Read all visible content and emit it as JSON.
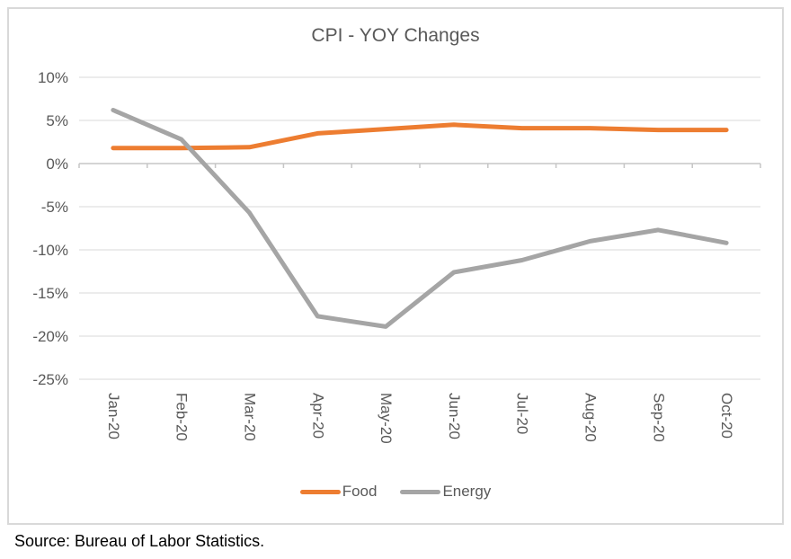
{
  "page": {
    "background_color": "#ffffff",
    "frame_border_color": "#d9d9d9"
  },
  "chart": {
    "title": "CPI - YOY Changes",
    "source_note": "Source: Bureau of Labor Statistics."
  },
  "chart_data": {
    "type": "line",
    "title": "CPI - YOY Changes",
    "categories": [
      "Jan-20",
      "Feb-20",
      "Mar-20",
      "Apr-20",
      "May-20",
      "Jun-20",
      "Jul-20",
      "Aug-20",
      "Sep-20",
      "Oct-20"
    ],
    "series": [
      {
        "name": "Food",
        "color": "#ED7D31",
        "values": [
          1.8,
          1.8,
          1.9,
          3.5,
          4.0,
          4.5,
          4.1,
          4.1,
          3.9,
          3.9
        ]
      },
      {
        "name": "Energy",
        "color": "#A5A5A5",
        "values": [
          6.2,
          2.8,
          -5.7,
          -17.7,
          -18.9,
          -12.6,
          -11.2,
          -9.0,
          -7.7,
          -9.2
        ]
      }
    ],
    "yticks": [
      {
        "value": 10,
        "label": "10%"
      },
      {
        "value": 5,
        "label": "5%"
      },
      {
        "value": 0,
        "label": "0%"
      },
      {
        "value": -5,
        "label": "-5%"
      },
      {
        "value": -10,
        "label": "-10%"
      },
      {
        "value": -15,
        "label": "-15%"
      },
      {
        "value": -20,
        "label": "-20%"
      },
      {
        "value": -25,
        "label": "-25%"
      }
    ],
    "ylim": [
      -27.5,
      12.5
    ],
    "xlabel": "",
    "ylabel": "",
    "grid": true,
    "legend_position": "bottom",
    "x_label_rotation": 90,
    "gridline_color": "#d9d9d9",
    "axis_color": "#c6c6c6",
    "tick_text_color": "#595959",
    "line_width": 5
  }
}
